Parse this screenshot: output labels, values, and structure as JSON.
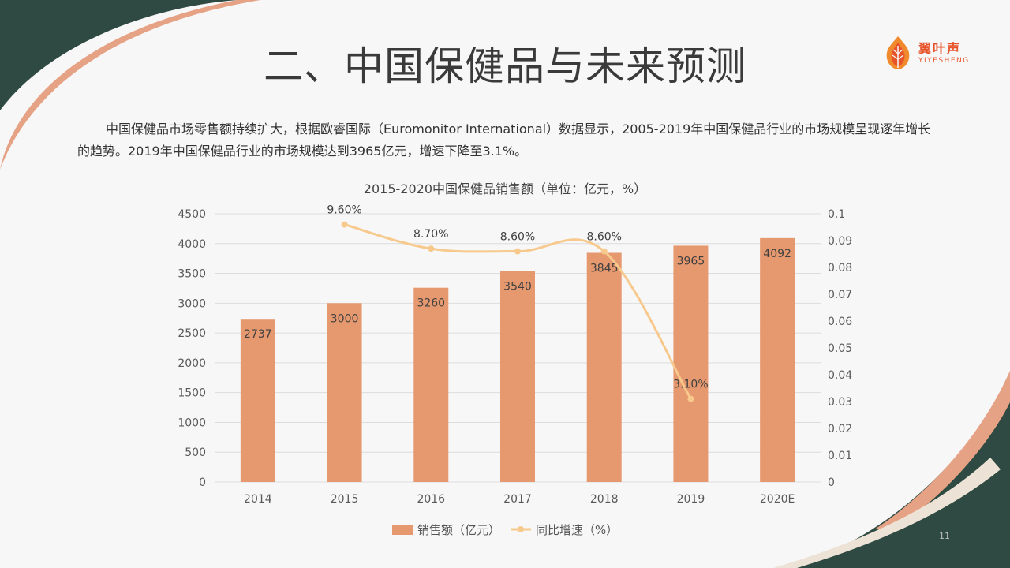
{
  "slide": {
    "title": "二、中国保健品与未来预测",
    "paragraph": "中国保健品市场零售额持续扩大，根据欧睿国际（Euromonitor International）数据显示，2005-2019年中国保健品行业的市场规模呈现逐年增长的趋势。2019年中国保健品行业的市场规模达到3965亿元，增速下降至3.1%。",
    "page_number": "11",
    "logo": {
      "cn": "翼叶声",
      "en": "YIYESHENG",
      "icon": "flame-leaf-icon"
    }
  },
  "colors": {
    "bar": "#e6996f",
    "line": "#f7c98d",
    "dark": "#2f4a42",
    "salmon": "#e6a284",
    "logo": "#e8542a"
  },
  "chart_data": {
    "type": "bar",
    "title": "2015-2020中国保健品销售额（单位：亿元，%）",
    "categories": [
      "2014",
      "2015",
      "2016",
      "2017",
      "2018",
      "2019",
      "2020E"
    ],
    "series": [
      {
        "name": "销售额（亿元）",
        "type": "bar",
        "axis": "left",
        "values": [
          2737,
          3000,
          3260,
          3540,
          3845,
          3965,
          4092
        ],
        "labels": [
          "2737",
          "3000",
          "3260",
          "3540",
          "3845",
          "3965",
          "4092"
        ]
      },
      {
        "name": "同比增速（%）",
        "type": "line",
        "axis": "right",
        "values": [
          null,
          0.096,
          0.087,
          0.086,
          0.086,
          0.031,
          null
        ],
        "labels": [
          null,
          "9.60%",
          "8.70%",
          "8.60%",
          "8.60%",
          "3.10%",
          null
        ]
      }
    ],
    "y_left": {
      "min": 0,
      "max": 4500,
      "ticks": [
        "0",
        "500",
        "1000",
        "1500",
        "2000",
        "2500",
        "3000",
        "3500",
        "4000",
        "4500"
      ]
    },
    "y_right": {
      "min": 0,
      "max": 0.1,
      "ticks": [
        "0",
        "0.01",
        "0.02",
        "0.03",
        "0.04",
        "0.05",
        "0.06",
        "0.07",
        "0.08",
        "0.09",
        "0.1"
      ]
    },
    "grid": true,
    "legend": "bottom"
  }
}
